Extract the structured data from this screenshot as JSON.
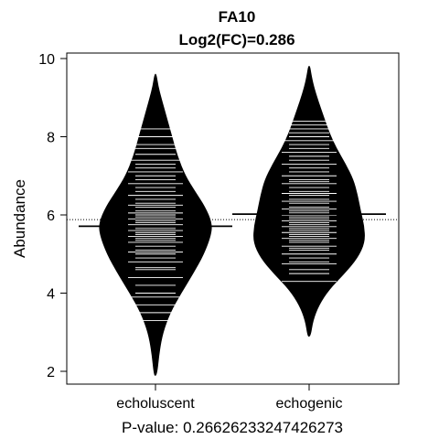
{
  "chart_data": {
    "type": "beanplot",
    "title": "FA10",
    "subtitle": "Log2(FC)=0.286",
    "ylabel": "Abundance",
    "xlabel": "",
    "footer": "P-value: 0.26626233247426273",
    "ylim": [
      1.5,
      10.5
    ],
    "yticks": [
      2,
      4,
      6,
      8,
      10
    ],
    "overall_mean": 5.88,
    "groups": [
      {
        "name": "echoluscent",
        "mean": 5.71,
        "min": 1.9,
        "max": 9.6,
        "density": [
          [
            1.9,
            0.02
          ],
          [
            2.5,
            0.06
          ],
          [
            3.0,
            0.12
          ],
          [
            3.5,
            0.24
          ],
          [
            4.0,
            0.42
          ],
          [
            4.5,
            0.62
          ],
          [
            5.0,
            0.8
          ],
          [
            5.5,
            0.92
          ],
          [
            5.8,
            0.93
          ],
          [
            6.2,
            0.82
          ],
          [
            6.6,
            0.65
          ],
          [
            7.0,
            0.49
          ],
          [
            7.5,
            0.36
          ],
          [
            8.0,
            0.27
          ],
          [
            8.5,
            0.18
          ],
          [
            9.0,
            0.09
          ],
          [
            9.3,
            0.04
          ],
          [
            9.6,
            0.01
          ]
        ],
        "observations": [
          3.3,
          3.5,
          3.7,
          3.9,
          4.0,
          4.2,
          4.4,
          4.6,
          4.65,
          4.8,
          4.9,
          5.0,
          5.05,
          5.1,
          5.2,
          5.3,
          5.35,
          5.4,
          5.45,
          5.5,
          5.55,
          5.6,
          5.65,
          5.7,
          5.75,
          5.8,
          5.85,
          5.9,
          5.95,
          6.0,
          6.05,
          6.1,
          6.2,
          6.25,
          6.3,
          6.4,
          6.5,
          6.6,
          6.7,
          6.8,
          6.9,
          7.0,
          7.1,
          7.2,
          7.3,
          7.4,
          7.55,
          7.7,
          7.8,
          8.0,
          8.2
        ]
      },
      {
        "name": "echogenic",
        "mean": 6.02,
        "min": 2.9,
        "max": 9.8,
        "density": [
          [
            2.9,
            0.02
          ],
          [
            3.3,
            0.06
          ],
          [
            3.7,
            0.16
          ],
          [
            4.1,
            0.33
          ],
          [
            4.5,
            0.58
          ],
          [
            4.9,
            0.8
          ],
          [
            5.3,
            0.92
          ],
          [
            5.7,
            0.91
          ],
          [
            6.1,
            0.85
          ],
          [
            6.5,
            0.8
          ],
          [
            6.9,
            0.73
          ],
          [
            7.3,
            0.6
          ],
          [
            7.7,
            0.45
          ],
          [
            8.1,
            0.33
          ],
          [
            8.5,
            0.24
          ],
          [
            8.9,
            0.15
          ],
          [
            9.3,
            0.07
          ],
          [
            9.6,
            0.03
          ],
          [
            9.8,
            0.01
          ]
        ],
        "observations": [
          4.3,
          4.5,
          4.6,
          4.75,
          4.8,
          4.9,
          5.0,
          5.1,
          5.15,
          5.2,
          5.3,
          5.35,
          5.4,
          5.45,
          5.5,
          5.55,
          5.6,
          5.65,
          5.7,
          5.75,
          5.8,
          5.85,
          5.9,
          5.95,
          6.0,
          6.05,
          6.1,
          6.15,
          6.2,
          6.3,
          6.35,
          6.4,
          6.5,
          6.55,
          6.6,
          6.7,
          6.8,
          6.85,
          6.9,
          7.0,
          7.1,
          7.2,
          7.3,
          7.4,
          7.5,
          7.6,
          7.7,
          7.8,
          7.9,
          8.0,
          8.1,
          8.2,
          8.3,
          8.4
        ]
      }
    ]
  }
}
